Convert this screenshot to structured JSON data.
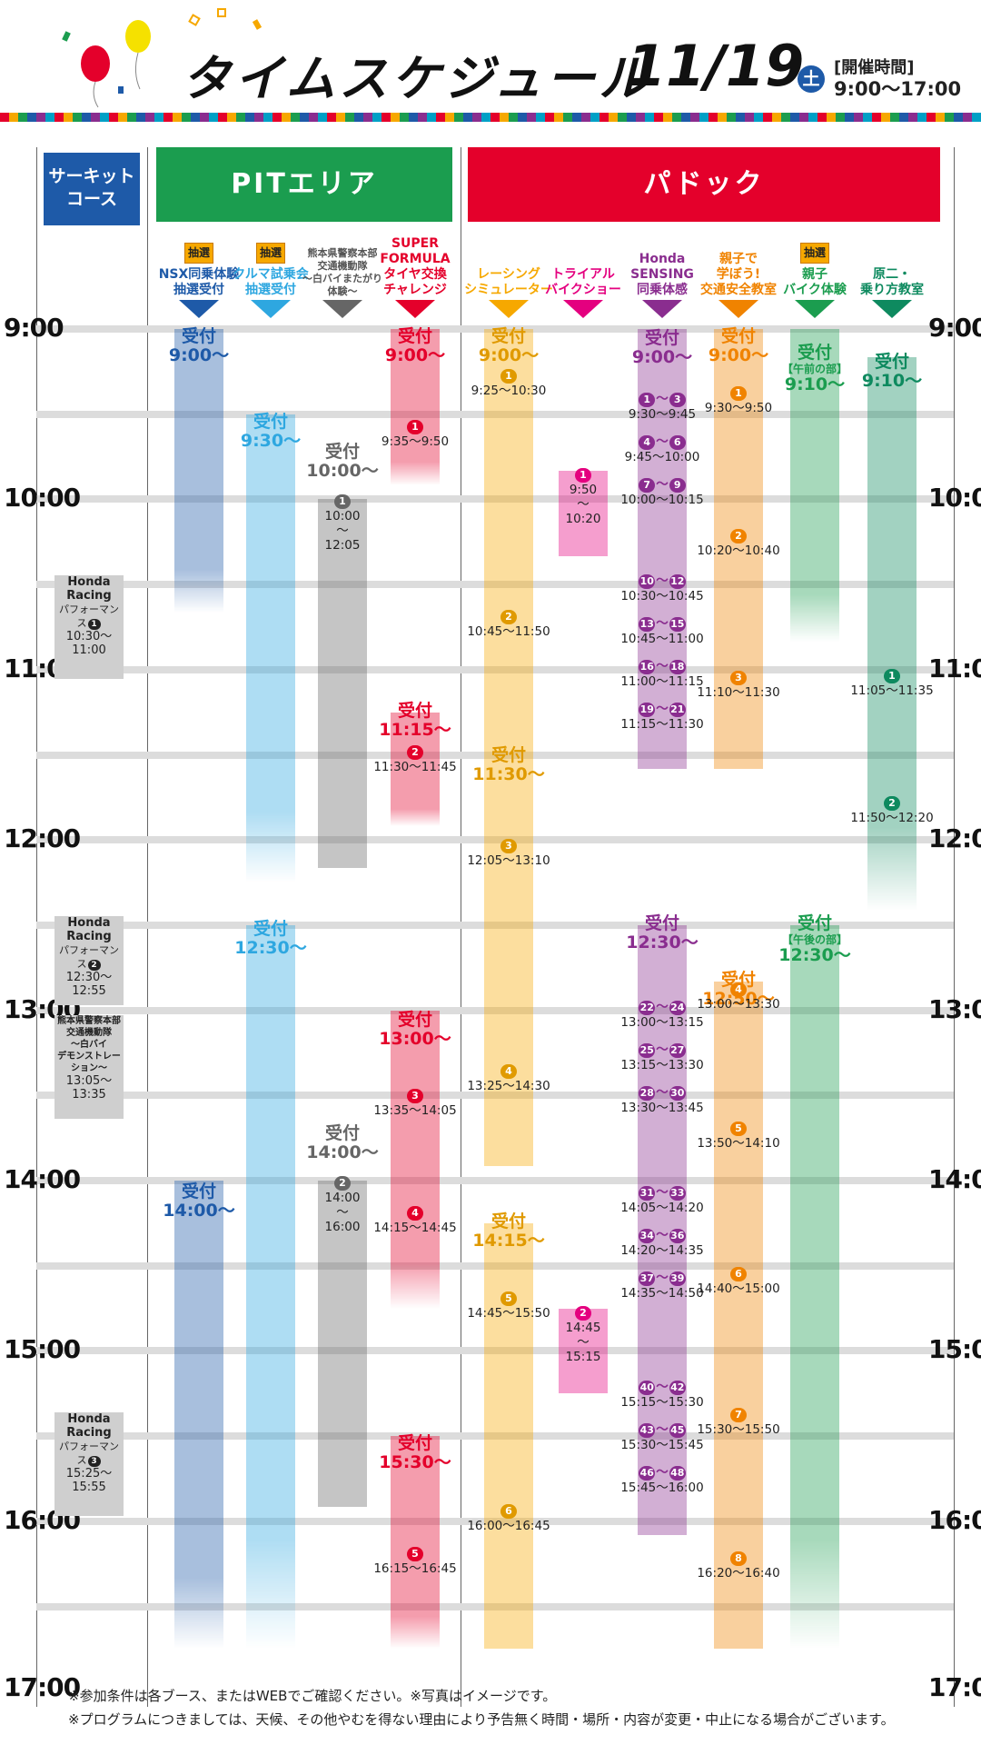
{
  "header": {
    "title": "タイムスケジュール",
    "date": "11/19",
    "day": "土",
    "hours_label": "[開催時間]",
    "hours": "9:00〜17:00"
  },
  "colors": {
    "blue": "#1e5aa8",
    "green": "#1b9d4f",
    "red": "#e4002b",
    "lightblue": "#2ea7e0",
    "gray": "#666666",
    "pink": "#e4007f",
    "yellow": "#f6a800",
    "purple": "#8a2d8f",
    "orange": "#f08300",
    "teal": "#0e8a5f"
  },
  "sections": {
    "circuit": "サーキット\nコース",
    "pit": "PITエリア",
    "paddock": "パドック"
  },
  "times": [
    "9:00",
    "10:00",
    "11:00",
    "12:00",
    "13:00",
    "14:00",
    "15:00",
    "16:00",
    "17:00"
  ],
  "columns": {
    "nsx": {
      "lottery": "抽選",
      "label": "NSX同乗体験\n抽選受付",
      "r1": "受付\n9:00〜",
      "r2": "受付\n14:00〜"
    },
    "kuruma": {
      "lottery": "抽選",
      "label": "クルマ試乗会\n抽選受付",
      "r1": "受付\n9:30〜",
      "r2": "受付\n12:30〜"
    },
    "police": {
      "label": "熊本県警察本部\n交通機動隊\n〜白バイまたがり\n体験〜",
      "r1": "受付\n10:00〜",
      "e1n": "1",
      "e1": "10:00\n〜\n12:05",
      "r2": "受付\n14:00〜",
      "e2n": "2",
      "e2": "14:00\n〜\n16:00"
    },
    "sf": {
      "label": "SUPER\nFORMULA\nタイヤ交換\nチャレンジ",
      "r1": "受付\n9:00〜",
      "e1n": "1",
      "e1": "9:35〜9:50",
      "r2": "受付\n11:15〜",
      "e2n": "2",
      "e2": "11:30〜11:45",
      "r3": "受付\n13:00〜",
      "e3n": "3",
      "e3": "13:35〜14:05",
      "e4n": "4",
      "e4": "14:15〜14:45",
      "r4": "受付\n15:30〜",
      "e5n": "5",
      "e5": "16:15〜16:45"
    },
    "racing": {
      "label": "レーシング\nシミュレーター",
      "r1": "受付\n9:00〜",
      "e1n": "1",
      "e1": "9:25〜10:30",
      "e2n": "2",
      "e2": "10:45〜11:50",
      "r2": "受付\n11:30〜",
      "e3n": "3",
      "e3": "12:05〜13:10",
      "e4n": "4",
      "e4": "13:25〜14:30",
      "r3": "受付\n14:15〜",
      "e5n": "5",
      "e5": "14:45〜15:50",
      "e6n": "6",
      "e6": "16:00〜16:45"
    },
    "trial": {
      "label": "トライアル\nバイクショー",
      "e1n": "1",
      "e1": "9:50\n〜\n10:20",
      "e2n": "2",
      "e2": "14:45\n〜\n15:15"
    },
    "sensing": {
      "label": "Honda\nSENSING\n同乗体感",
      "r1": "受付\n9:00〜",
      "r2": "受付\n12:30〜",
      "items": [
        {
          "a": "1",
          "b": "3",
          "t": "9:30〜9:45"
        },
        {
          "a": "4",
          "b": "6",
          "t": "9:45〜10:00"
        },
        {
          "a": "7",
          "b": "9",
          "t": "10:00〜10:15"
        },
        {
          "a": "10",
          "b": "12",
          "t": "10:30〜10:45"
        },
        {
          "a": "13",
          "b": "15",
          "t": "10:45〜11:00"
        },
        {
          "a": "16",
          "b": "18",
          "t": "11:00〜11:15"
        },
        {
          "a": "19",
          "b": "21",
          "t": "11:15〜11:30"
        },
        {
          "a": "22",
          "b": "24",
          "t": "13:00〜13:15"
        },
        {
          "a": "25",
          "b": "27",
          "t": "13:15〜13:30"
        },
        {
          "a": "28",
          "b": "30",
          "t": "13:30〜13:45"
        },
        {
          "a": "31",
          "b": "33",
          "t": "14:05〜14:20"
        },
        {
          "a": "34",
          "b": "36",
          "t": "14:20〜14:35"
        },
        {
          "a": "37",
          "b": "39",
          "t": "14:35〜14:50"
        },
        {
          "a": "40",
          "b": "42",
          "t": "15:15〜15:30"
        },
        {
          "a": "43",
          "b": "45",
          "t": "15:30〜15:45"
        },
        {
          "a": "46",
          "b": "48",
          "t": "15:45〜16:00"
        }
      ]
    },
    "kotsu": {
      "label": "親子で\n学ぼう!\n交通安全教室",
      "r1": "受付\n9:00〜",
      "r2": "受付\n12:50〜",
      "items": [
        {
          "n": "1",
          "t": "9:30〜9:50"
        },
        {
          "n": "2",
          "t": "10:20〜10:40"
        },
        {
          "n": "3",
          "t": "11:10〜11:30"
        },
        {
          "n": "4",
          "t": "13:00〜13:30"
        },
        {
          "n": "5",
          "t": "13:50〜14:10"
        },
        {
          "n": "6",
          "t": "14:40〜15:00"
        },
        {
          "n": "7",
          "t": "15:30〜15:50"
        },
        {
          "n": "8",
          "t": "16:20〜16:40"
        }
      ]
    },
    "oyako": {
      "lottery": "抽選",
      "label": "親子\nバイク体験",
      "r1a": "受付",
      "r1b": "【午前の部】",
      "r1c": "9:10〜",
      "r2a": "受付",
      "r2b": "【午後の部】",
      "r2c": "12:30〜"
    },
    "gentsuki": {
      "label": "原二・\n乗り方教室",
      "r1": "受付\n9:10〜",
      "e1n": "1",
      "e1": "11:05〜11:35",
      "e2n": "2",
      "e2": "11:50〜12:20"
    }
  },
  "circuit": [
    {
      "title": "Honda Racing",
      "sub": "パフォーマンス",
      "n": "1",
      "t": "10:30〜11:00"
    },
    {
      "title": "Honda Racing",
      "sub": "パフォーマンス",
      "n": "2",
      "t": "12:30〜12:55"
    },
    {
      "title": "熊本県警察本部\n交通機動隊\n〜白バイ\nデモンストレーション〜",
      "t": "13:05〜13:35"
    },
    {
      "title": "Honda Racing",
      "sub": "パフォーマンス",
      "n": "3",
      "t": "15:25〜15:55"
    }
  ],
  "notes": [
    "※参加条件は各ブース、またはWEBでご確認ください。※写真はイメージです。",
    "※プログラムにつきましては、天候、その他やむを得ない理由により予告無く時間・場所・内容が変更・中止になる場合がございます。"
  ]
}
